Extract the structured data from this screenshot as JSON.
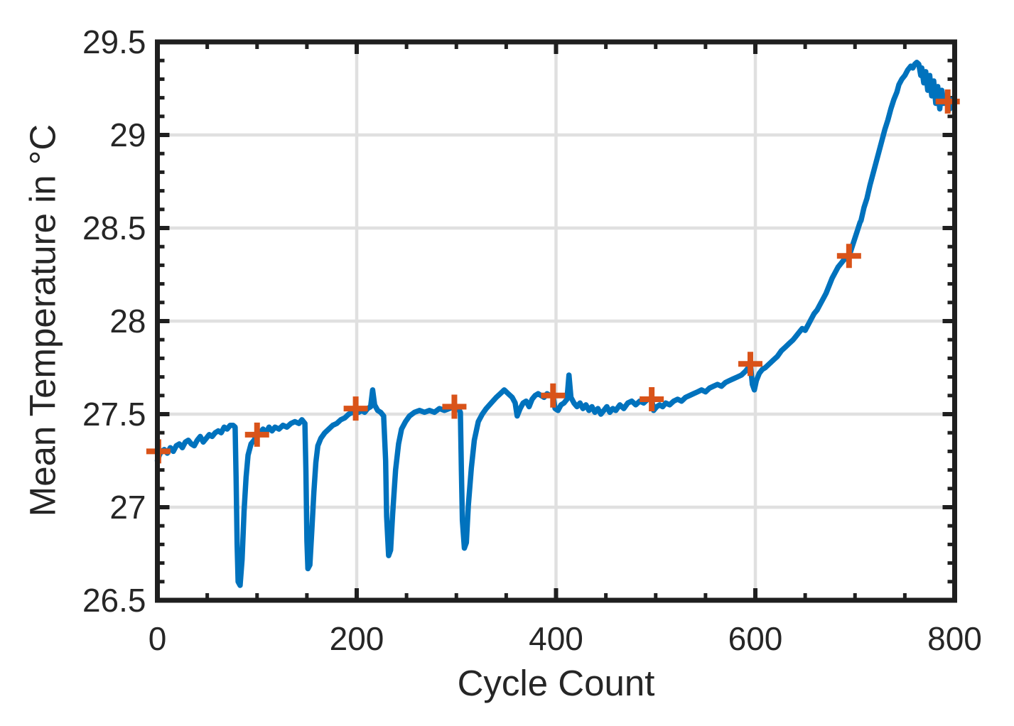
{
  "figure": {
    "background": "#ffffff"
  },
  "chart_data": {
    "type": "line",
    "title": "",
    "xlabel": "Cycle Count",
    "ylabel": "Mean Temperature in °C",
    "xlim": [
      0,
      800
    ],
    "ylim": [
      26.5,
      29.5
    ],
    "x_ticks": [
      0,
      200,
      400,
      600,
      800
    ],
    "x_tick_labels": [
      "0",
      "200",
      "400",
      "600",
      "800"
    ],
    "y_ticks": [
      26.5,
      27,
      27.5,
      28,
      28.5,
      29,
      29.5
    ],
    "y_tick_labels": [
      "26.5",
      "27",
      "27.5",
      "28",
      "28.5",
      "29",
      "29.5"
    ],
    "x_minor_step": 50,
    "y_minor_step": 0.1,
    "grid": true,
    "grid_x": [
      200,
      400,
      600
    ],
    "grid_y": [
      27,
      27.5,
      28,
      28.5,
      29
    ],
    "legend": "none",
    "colors": {
      "line": "#0072BD",
      "marker": "#D95319",
      "axis": "#1f1f1f",
      "text": "#262626",
      "grid": "#e0e0e0"
    },
    "series": [
      {
        "name": "mean-temperature",
        "color": "#0072BD",
        "points": [
          [
            0,
            27.25
          ],
          [
            2,
            27.28
          ],
          [
            4,
            27.3
          ],
          [
            7,
            27.31
          ],
          [
            10,
            27.29
          ],
          [
            13,
            27.32
          ],
          [
            16,
            27.3
          ],
          [
            19,
            27.33
          ],
          [
            22,
            27.34
          ],
          [
            25,
            27.32
          ],
          [
            28,
            27.35
          ],
          [
            31,
            27.36
          ],
          [
            34,
            27.34
          ],
          [
            37,
            27.33
          ],
          [
            40,
            27.36
          ],
          [
            43,
            27.38
          ],
          [
            46,
            27.35
          ],
          [
            49,
            27.37
          ],
          [
            52,
            27.39
          ],
          [
            55,
            27.38
          ],
          [
            58,
            27.4
          ],
          [
            61,
            27.41
          ],
          [
            64,
            27.4
          ],
          [
            67,
            27.43
          ],
          [
            70,
            27.42
          ],
          [
            73,
            27.44
          ],
          [
            76,
            27.44
          ],
          [
            78,
            27.43
          ],
          [
            79,
            27.15
          ],
          [
            80,
            26.8
          ],
          [
            81,
            26.6
          ],
          [
            83,
            26.58
          ],
          [
            85,
            26.72
          ],
          [
            87,
            26.98
          ],
          [
            89,
            27.16
          ],
          [
            91,
            27.28
          ],
          [
            94,
            27.34
          ],
          [
            97,
            27.36
          ],
          [
            100,
            27.39
          ],
          [
            103,
            27.4
          ],
          [
            106,
            27.42
          ],
          [
            109,
            27.4
          ],
          [
            112,
            27.43
          ],
          [
            115,
            27.41
          ],
          [
            118,
            27.43
          ],
          [
            122,
            27.42
          ],
          [
            126,
            27.44
          ],
          [
            130,
            27.43
          ],
          [
            134,
            27.45
          ],
          [
            138,
            27.46
          ],
          [
            142,
            27.45
          ],
          [
            145,
            27.47
          ],
          [
            148,
            27.45
          ],
          [
            149,
            27.2
          ],
          [
            150,
            26.82
          ],
          [
            151,
            26.67
          ],
          [
            153,
            26.69
          ],
          [
            155,
            26.88
          ],
          [
            157,
            27.08
          ],
          [
            159,
            27.24
          ],
          [
            161,
            27.33
          ],
          [
            164,
            27.37
          ],
          [
            168,
            27.4
          ],
          [
            172,
            27.42
          ],
          [
            176,
            27.44
          ],
          [
            180,
            27.45
          ],
          [
            184,
            27.47
          ],
          [
            188,
            27.48
          ],
          [
            192,
            27.5
          ],
          [
            196,
            27.51
          ],
          [
            199,
            27.53
          ],
          [
            202,
            27.51
          ],
          [
            205,
            27.52
          ],
          [
            208,
            27.51
          ],
          [
            211,
            27.53
          ],
          [
            214,
            27.54
          ],
          [
            216,
            27.63
          ],
          [
            218,
            27.55
          ],
          [
            221,
            27.52
          ],
          [
            224,
            27.51
          ],
          [
            227,
            27.49
          ],
          [
            229,
            27.25
          ],
          [
            230,
            26.95
          ],
          [
            232,
            26.74
          ],
          [
            234,
            26.77
          ],
          [
            236,
            26.96
          ],
          [
            239,
            27.2
          ],
          [
            242,
            27.34
          ],
          [
            245,
            27.42
          ],
          [
            249,
            27.46
          ],
          [
            253,
            27.49
          ],
          [
            258,
            27.51
          ],
          [
            263,
            27.52
          ],
          [
            268,
            27.51
          ],
          [
            273,
            27.52
          ],
          [
            278,
            27.51
          ],
          [
            283,
            27.53
          ],
          [
            288,
            27.52
          ],
          [
            293,
            27.53
          ],
          [
            297,
            27.54
          ],
          [
            301,
            27.54
          ],
          [
            304,
            27.51
          ],
          [
            305,
            27.2
          ],
          [
            306,
            26.93
          ],
          [
            308,
            26.78
          ],
          [
            310,
            26.81
          ],
          [
            312,
            27.01
          ],
          [
            315,
            27.21
          ],
          [
            318,
            27.36
          ],
          [
            322,
            27.46
          ],
          [
            326,
            27.5
          ],
          [
            330,
            27.53
          ],
          [
            335,
            27.56
          ],
          [
            340,
            27.59
          ],
          [
            344,
            27.61
          ],
          [
            348,
            27.63
          ],
          [
            352,
            27.61
          ],
          [
            356,
            27.59
          ],
          [
            359,
            27.56
          ],
          [
            361,
            27.49
          ],
          [
            364,
            27.53
          ],
          [
            367,
            27.56
          ],
          [
            370,
            27.57
          ],
          [
            373,
            27.54
          ],
          [
            376,
            27.58
          ],
          [
            379,
            27.6
          ],
          [
            382,
            27.61
          ],
          [
            385,
            27.6
          ],
          [
            388,
            27.59
          ],
          [
            391,
            27.61
          ],
          [
            394,
            27.6
          ],
          [
            397,
            27.6
          ],
          [
            399,
            27.53
          ],
          [
            402,
            27.52
          ],
          [
            405,
            27.55
          ],
          [
            408,
            27.56
          ],
          [
            411,
            27.58
          ],
          [
            413,
            27.71
          ],
          [
            415,
            27.59
          ],
          [
            418,
            27.56
          ],
          [
            421,
            27.54
          ],
          [
            424,
            27.56
          ],
          [
            427,
            27.53
          ],
          [
            430,
            27.55
          ],
          [
            433,
            27.52
          ],
          [
            436,
            27.54
          ],
          [
            439,
            27.51
          ],
          [
            442,
            27.53
          ],
          [
            445,
            27.5
          ],
          [
            448,
            27.52
          ],
          [
            451,
            27.54
          ],
          [
            454,
            27.51
          ],
          [
            457,
            27.53
          ],
          [
            460,
            27.52
          ],
          [
            464,
            27.55
          ],
          [
            468,
            27.53
          ],
          [
            472,
            27.56
          ],
          [
            476,
            27.57
          ],
          [
            480,
            27.55
          ],
          [
            484,
            27.57
          ],
          [
            488,
            27.56
          ],
          [
            492,
            27.58
          ],
          [
            496,
            27.58
          ],
          [
            498,
            27.52
          ],
          [
            501,
            27.54
          ],
          [
            504,
            27.55
          ],
          [
            507,
            27.54
          ],
          [
            510,
            27.56
          ],
          [
            514,
            27.55
          ],
          [
            518,
            27.57
          ],
          [
            522,
            27.58
          ],
          [
            526,
            27.57
          ],
          [
            530,
            27.59
          ],
          [
            534,
            27.6
          ],
          [
            538,
            27.61
          ],
          [
            542,
            27.62
          ],
          [
            546,
            27.63
          ],
          [
            550,
            27.62
          ],
          [
            554,
            27.64
          ],
          [
            558,
            27.65
          ],
          [
            562,
            27.66
          ],
          [
            566,
            27.65
          ],
          [
            570,
            27.67
          ],
          [
            574,
            27.68
          ],
          [
            578,
            27.69
          ],
          [
            582,
            27.7
          ],
          [
            586,
            27.71
          ],
          [
            590,
            27.73
          ],
          [
            593,
            27.75
          ],
          [
            595,
            27.77
          ],
          [
            597,
            27.66
          ],
          [
            599,
            27.63
          ],
          [
            601,
            27.68
          ],
          [
            604,
            27.72
          ],
          [
            607,
            27.74
          ],
          [
            610,
            27.75
          ],
          [
            614,
            27.77
          ],
          [
            618,
            27.79
          ],
          [
            622,
            27.81
          ],
          [
            626,
            27.84
          ],
          [
            630,
            27.86
          ],
          [
            634,
            27.88
          ],
          [
            638,
            27.9
          ],
          [
            641,
            27.92
          ],
          [
            644,
            27.94
          ],
          [
            647,
            27.96
          ],
          [
            650,
            27.95
          ],
          [
            653,
            27.98
          ],
          [
            656,
            28.01
          ],
          [
            659,
            28.04
          ],
          [
            662,
            28.06
          ],
          [
            665,
            28.09
          ],
          [
            668,
            28.12
          ],
          [
            671,
            28.15
          ],
          [
            674,
            28.19
          ],
          [
            677,
            28.23
          ],
          [
            680,
            28.26
          ],
          [
            683,
            28.29
          ],
          [
            686,
            28.31
          ],
          [
            689,
            28.33
          ],
          [
            692,
            28.34
          ],
          [
            694,
            28.35
          ],
          [
            696,
            28.38
          ],
          [
            699,
            28.43
          ],
          [
            702,
            28.48
          ],
          [
            705,
            28.53
          ],
          [
            706,
            28.54
          ],
          [
            709,
            28.61
          ],
          [
            712,
            28.66
          ],
          [
            715,
            28.73
          ],
          [
            718,
            28.79
          ],
          [
            721,
            28.85
          ],
          [
            724,
            28.91
          ],
          [
            727,
            28.97
          ],
          [
            730,
            29.03
          ],
          [
            733,
            29.08
          ],
          [
            736,
            29.14
          ],
          [
            739,
            29.19
          ],
          [
            742,
            29.23
          ],
          [
            744,
            29.27
          ],
          [
            747,
            29.3
          ],
          [
            750,
            29.32
          ],
          [
            753,
            29.35
          ],
          [
            756,
            29.37
          ],
          [
            758,
            29.36
          ],
          [
            760,
            29.38
          ],
          [
            762,
            29.39
          ],
          [
            764,
            29.38
          ],
          [
            766,
            29.32
          ],
          [
            767,
            29.36
          ],
          [
            769,
            29.28
          ],
          [
            771,
            29.34
          ],
          [
            773,
            29.24
          ],
          [
            775,
            29.32
          ],
          [
            777,
            29.21
          ],
          [
            779,
            29.29
          ],
          [
            781,
            29.17
          ],
          [
            783,
            29.26
          ],
          [
            785,
            29.14
          ],
          [
            787,
            29.24
          ],
          [
            789,
            29.17
          ],
          [
            791,
            29.21
          ],
          [
            793,
            29.18
          ],
          [
            795,
            29.14
          ],
          [
            797,
            29.19
          ],
          [
            798,
            29.16
          ]
        ]
      }
    ],
    "markers": {
      "name": "sampled-cycles",
      "shape": "plus",
      "color": "#D95319",
      "x": [
        1,
        100,
        199,
        298,
        397,
        496,
        595,
        694,
        793
      ],
      "y": [
        27.3,
        27.39,
        27.53,
        27.54,
        27.6,
        27.58,
        27.77,
        28.35,
        29.18
      ]
    }
  }
}
